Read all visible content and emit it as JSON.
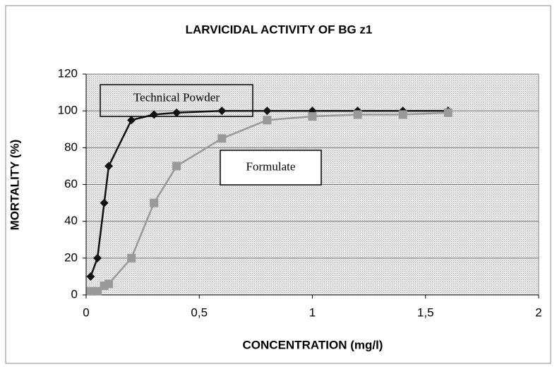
{
  "chart_data": {
    "type": "line",
    "title": "LARVICIDAL ACTIVITY OF BG z1",
    "x_label": "CONCENTRATION (mg/l)",
    "y_label": "MORTALITY (%)",
    "x": [
      0.02,
      0.05,
      0.08,
      0.1,
      0.2,
      0.3,
      0.4,
      0.6,
      0.8,
      1,
      1.2,
      1.4,
      1.6
    ],
    "series": [
      {
        "name": "Technical Powder",
        "color": "#111111",
        "marker": "diamond",
        "values": [
          10,
          20,
          50,
          70,
          95,
          98,
          99,
          100,
          100,
          100,
          100,
          100,
          100
        ]
      },
      {
        "name": "Formulate",
        "color": "#999999",
        "marker": "square",
        "values": [
          2,
          2,
          5,
          6,
          20,
          50,
          70,
          85,
          95,
          97,
          98,
          98,
          99
        ]
      }
    ],
    "xlim": [
      0,
      2
    ],
    "xticks": [
      0,
      {
        "value": 0.5,
        "label": "0,5"
      },
      1,
      {
        "value": 1.5,
        "label": "1,5"
      },
      2
    ],
    "ylim": [
      0,
      120
    ],
    "yticks": [
      0,
      20,
      40,
      60,
      80,
      100,
      120
    ],
    "grid": true
  }
}
